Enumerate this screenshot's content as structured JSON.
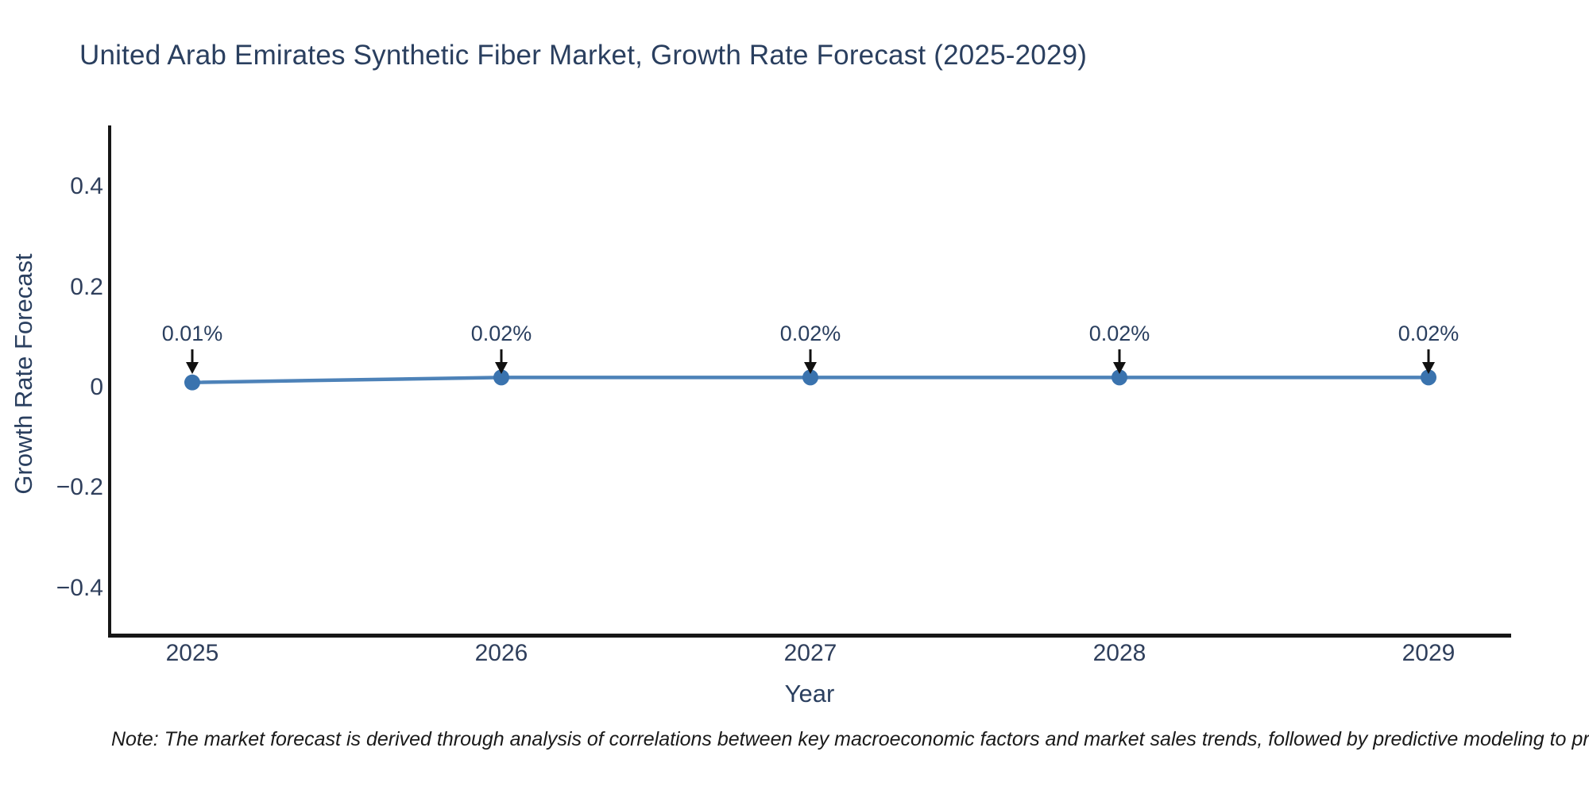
{
  "title": "United Arab Emirates Synthetic Fiber Market, Growth Rate Forecast (2025-2029)",
  "note": "Note: The market forecast is derived through analysis of correlations between key macroeconomic factors and market sales trends, followed by predictive modeling to project future sa",
  "chart_data": {
    "type": "line",
    "title": "United Arab Emirates Synthetic Fiber Market, Growth Rate Forecast (2025-2029)",
    "x": [
      2025,
      2026,
      2027,
      2028,
      2029
    ],
    "series": [
      {
        "name": "Growth Rate Forecast",
        "values": [
          0.01,
          0.02,
          0.02,
          0.02,
          0.02
        ]
      }
    ],
    "annotations": [
      "0.01%",
      "0.02%",
      "0.02%",
      "0.02%",
      "0.02%"
    ],
    "xlabel": "Year",
    "ylabel": "Growth Rate Forecast",
    "xticks": [
      "2025",
      "2026",
      "2027",
      "2028",
      "2029"
    ],
    "yticks": {
      "labels": [
        "0.4",
        "0.2",
        "0",
        "−0.2",
        "−0.4"
      ],
      "values": [
        0.4,
        0.2,
        0,
        -0.2,
        -0.4
      ]
    },
    "ylim": [
      -0.5,
      0.52
    ],
    "grid": false,
    "legend_position": "none",
    "marker_style": "circle",
    "colors": {
      "line": "#4d82b8",
      "marker": "#3a73ae",
      "arrow": "#111111",
      "axis": "#161616",
      "heading_text": "#2a3f5f",
      "tick_text": "#2f3f5c",
      "note_text": "#1a1a1a"
    }
  }
}
